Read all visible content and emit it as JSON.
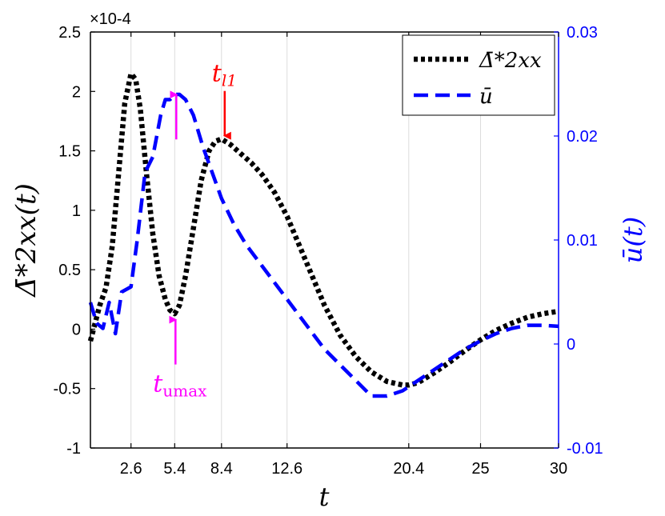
{
  "chart_data": {
    "type": "line",
    "x_ticks": [
      2.6,
      5.4,
      8.4,
      12.6,
      20.4,
      25,
      30
    ],
    "x_tick_labels": [
      "2.6",
      "5.4",
      "8.4",
      "12.6",
      "20.4",
      "25",
      "30"
    ],
    "xlim": [
      0,
      30
    ],
    "xlabel": "t",
    "left_axis": {
      "label": "Δ̄*2xx(t)",
      "multiplier": "×10-4",
      "ylim": [
        -1,
        2.5
      ],
      "ticks": [
        -1,
        -0.5,
        0,
        0.5,
        1,
        1.5,
        2,
        2.5
      ],
      "tick_labels": [
        "-1",
        "-0.5",
        "0",
        "0.5",
        "1",
        "1.5",
        "2",
        "2.5"
      ]
    },
    "right_axis": {
      "label": "ū(t)",
      "color": "#0000ff",
      "ylim": [
        -0.01,
        0.03
      ],
      "ticks": [
        -0.01,
        0,
        0.01,
        0.02,
        0.03
      ],
      "tick_labels": [
        "-0.01",
        "0",
        "0.01",
        "0.02",
        "0.03"
      ]
    },
    "grid": "vertical lines at x ticks",
    "legend": "top-right",
    "series": [
      {
        "name": "Δ̄*2xx",
        "axis": "left",
        "color": "#000000",
        "style": "dotted",
        "x": [
          0.0,
          0.3,
          0.6,
          1.0,
          1.4,
          1.8,
          2.2,
          2.6,
          2.9,
          3.2,
          3.6,
          4.0,
          4.4,
          4.8,
          5.1,
          5.4,
          5.7,
          6.1,
          6.6,
          7.1,
          7.6,
          8.0,
          8.4,
          9.0,
          9.6,
          10.3,
          11.0,
          11.8,
          12.6,
          13.4,
          14.2,
          15.0,
          16.0,
          17.0,
          18.0,
          19.0,
          20.0,
          20.4,
          21.0,
          22.0,
          23.0,
          24.0,
          25.0,
          26.0,
          27.0,
          28.0,
          29.0,
          30.0
        ],
        "y": [
          -0.1,
          0.05,
          0.2,
          0.35,
          0.7,
          1.3,
          1.9,
          2.15,
          2.1,
          1.85,
          1.3,
          0.8,
          0.45,
          0.25,
          0.16,
          0.13,
          0.2,
          0.45,
          0.85,
          1.25,
          1.5,
          1.58,
          1.6,
          1.55,
          1.48,
          1.4,
          1.3,
          1.15,
          0.95,
          0.7,
          0.45,
          0.2,
          -0.05,
          -0.23,
          -0.36,
          -0.44,
          -0.47,
          -0.47,
          -0.45,
          -0.37,
          -0.28,
          -0.18,
          -0.09,
          -0.01,
          0.05,
          0.1,
          0.13,
          0.15
        ]
      },
      {
        "name": "ū",
        "axis": "right",
        "color": "#0000ff",
        "style": "dashed",
        "x": [
          0.0,
          0.4,
          0.8,
          1.2,
          1.6,
          2.0,
          2.6,
          3.0,
          3.5,
          4.0,
          4.5,
          4.8,
          5.1,
          5.4,
          5.7,
          6.1,
          6.6,
          7.2,
          7.8,
          8.4,
          9.2,
          10.0,
          11.0,
          12.0,
          13.0,
          14.0,
          15.0,
          16.0,
          17.0,
          18.0,
          19.0,
          20.0,
          21.0,
          22.0,
          23.0,
          24.0,
          25.0,
          26.0,
          27.0,
          28.0,
          29.0,
          30.0
        ],
        "y": [
          0.004,
          0.002,
          0.0015,
          0.004,
          0.001,
          0.005,
          0.0055,
          0.01,
          0.0165,
          0.018,
          0.022,
          0.0235,
          0.0235,
          0.024,
          0.024,
          0.0235,
          0.022,
          0.019,
          0.0165,
          0.014,
          0.0115,
          0.0095,
          0.0075,
          0.0055,
          0.0035,
          0.0015,
          -0.0005,
          -0.002,
          -0.0035,
          -0.005,
          -0.005,
          -0.0045,
          -0.0035,
          -0.0025,
          -0.0015,
          -0.0005,
          0.0003,
          0.001,
          0.0015,
          0.0018,
          0.0018,
          0.0017
        ]
      }
    ],
    "annotations": [
      {
        "id": "tl1",
        "text_main": "t",
        "text_sub": "l1",
        "color": "#ff0000",
        "x": 8.4,
        "y": 1.6,
        "direction": "down"
      },
      {
        "id": "umax_top",
        "color": "#ff00ff",
        "x": 5.4,
        "y": 2.0,
        "direction": "up"
      },
      {
        "id": "umax_bottom",
        "text_main": "t",
        "text_sub": "umax",
        "color": "#ff00ff",
        "x": 5.4,
        "y": 0.12,
        "direction": "up"
      }
    ]
  }
}
